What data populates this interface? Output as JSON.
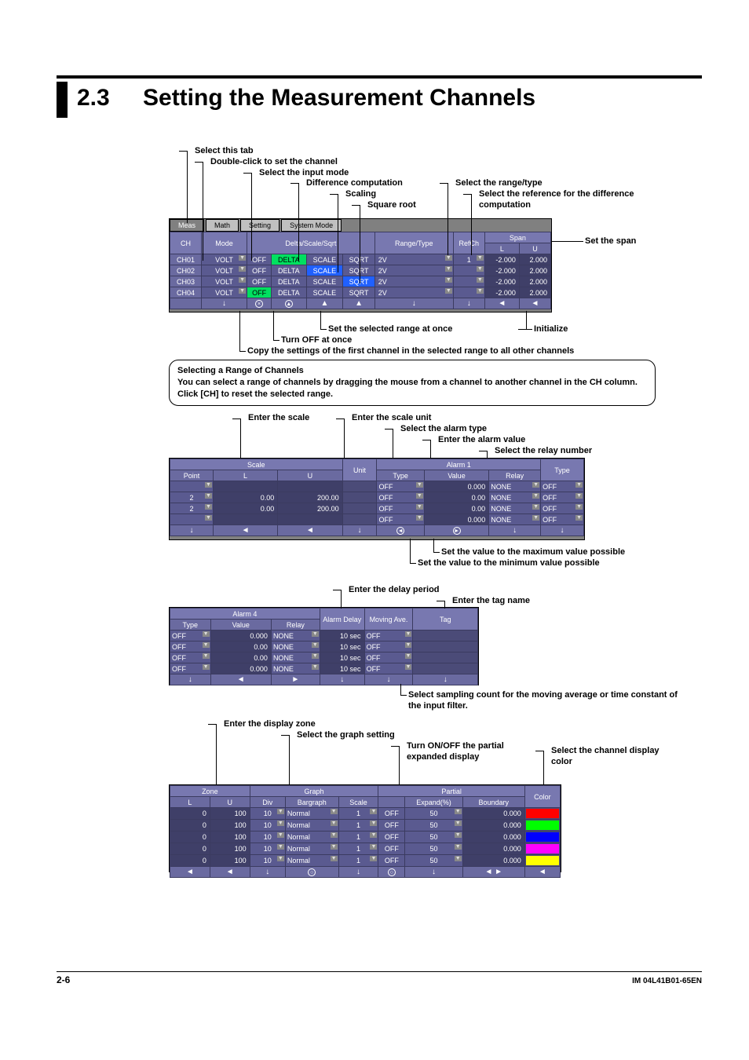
{
  "section_number": "2.3",
  "section_title": "Setting the Measurement Channels",
  "footer_page": "2-6",
  "footer_doc": "IM 04L41B01-65EN",
  "labels": {
    "select_tab": "Select this tab",
    "dbl_click": "Double-click to set the channel",
    "input_mode": "Select the input mode",
    "diff_comp": "Difference computation",
    "scaling": "Scaling",
    "sqrt": "Square root",
    "range_type": "Select the range/type",
    "ref_ch": "Select the reference for the difference computation",
    "set_span": "Set the span",
    "set_range_once": "Set the selected range at once",
    "turn_off_once": "Turn OFF at once",
    "copy_settings": "Copy the settings of the first channel in the selected range to all other channels",
    "initialize": "Initialize",
    "enter_scale": "Enter the scale",
    "enter_scale_unit": "Enter the scale unit",
    "alarm_type": "Select the alarm type",
    "alarm_value": "Enter the alarm value",
    "relay_number": "Select the relay number",
    "max_val": "Set the value to the maximum value possible",
    "min_val": "Set the value to the minimum value possible",
    "delay": "Enter the delay period",
    "tag": "Enter the tag name",
    "sampling": "Select sampling count for the moving average or time constant of the input filter.",
    "disp_zone": "Enter the display zone",
    "graph_setting": "Select the graph setting",
    "partial_toggle": "Turn ON/OFF the partial expanded display",
    "color": "Select the channel display color"
  },
  "notebox": {
    "title": "Selecting a Range of Channels",
    "body": "You can select a range of channels by dragging the mouse from a channel to another channel in the CH column.  Click [CH] to reset the selected range."
  },
  "fig1": {
    "tabs": [
      "Meas",
      "Math",
      "Setting",
      "System Mode"
    ],
    "top_headers_left": [
      "CH",
      "Mode",
      "Delta/Scale/Sqrt",
      "Range/Type",
      "RefCh"
    ],
    "span_group": "Span",
    "span_headers": [
      "L",
      "U"
    ],
    "rows": [
      {
        "ch": "CH01",
        "mode": "VOLT",
        "off": "OFF",
        "d": "DELTA",
        "s": "SCALE",
        "q": "SQRT",
        "rt": "2V",
        "ref": "1",
        "sl": "-2.000",
        "su": "2.000",
        "hi_d": true
      },
      {
        "ch": "CH02",
        "mode": "VOLT",
        "off": "OFF",
        "d": "DELTA",
        "s": "SCALE",
        "q": "SQRT",
        "rt": "2V",
        "ref": "",
        "sl": "-2.000",
        "su": "2.000",
        "hi_s": true
      },
      {
        "ch": "CH03",
        "mode": "VOLT",
        "off": "OFF",
        "d": "DELTA",
        "s": "SCALE",
        "q": "SQRT",
        "rt": "2V",
        "ref": "",
        "sl": "-2.000",
        "su": "2.000",
        "hi_q": true
      },
      {
        "ch": "CH04",
        "mode": "VOLT",
        "off": "OFF",
        "d": "DELTA",
        "s": "SCALE",
        "q": "SQRT",
        "rt": "2V",
        "ref": "",
        "sl": "-2.000",
        "su": "2.000",
        "hi_off": true
      }
    ]
  },
  "fig2": {
    "scale_group": "Scale",
    "scale_headers": [
      "Point",
      "L",
      "U"
    ],
    "unit_header": "Unit",
    "alarm_group": "Alarm 1",
    "alarm_headers": [
      "Type",
      "Value",
      "Relay",
      "Type"
    ],
    "rows": [
      {
        "pt": "",
        "l": "",
        "u": "",
        "unit": "",
        "at": "OFF",
        "av": "0.000",
        "ar": "NONE",
        "a2": "OFF"
      },
      {
        "pt": "2",
        "l": "0.00",
        "u": "200.00",
        "unit": "",
        "at": "OFF",
        "av": "0.00",
        "ar": "NONE",
        "a2": "OFF"
      },
      {
        "pt": "2",
        "l": "0.00",
        "u": "200.00",
        "unit": "",
        "at": "OFF",
        "av": "0.00",
        "ar": "NONE",
        "a2": "OFF"
      },
      {
        "pt": "",
        "l": "",
        "u": "",
        "unit": "",
        "at": "OFF",
        "av": "0.000",
        "ar": "NONE",
        "a2": "OFF"
      }
    ]
  },
  "fig3": {
    "alarm_group": "Alarm 4",
    "alarm_headers": [
      "Type",
      "Value",
      "Relay"
    ],
    "delay_header": "Alarm Delay",
    "mov_header": "Moving Ave.",
    "tag_header": "Tag",
    "rows": [
      {
        "at": "OFF",
        "av": "0.000",
        "ar": "NONE",
        "ad": "10 sec",
        "ma": "OFF",
        "tag": ""
      },
      {
        "at": "OFF",
        "av": "0.00",
        "ar": "NONE",
        "ad": "10 sec",
        "ma": "OFF",
        "tag": ""
      },
      {
        "at": "OFF",
        "av": "0.00",
        "ar": "NONE",
        "ad": "10 sec",
        "ma": "OFF",
        "tag": ""
      },
      {
        "at": "OFF",
        "av": "0.000",
        "ar": "NONE",
        "ad": "10 sec",
        "ma": "OFF",
        "tag": ""
      }
    ]
  },
  "fig4": {
    "zone_group": "Zone",
    "zone_headers": [
      "L",
      "U"
    ],
    "graph_group": "Graph",
    "graph_headers": [
      "Div",
      "Bargraph",
      "Scale"
    ],
    "partial_group": "Partial",
    "partial_headers": [
      "",
      "Expand(%)",
      "Boundary"
    ],
    "color_header": "Color",
    "rows": [
      {
        "zl": "0",
        "zu": "100",
        "div": "10",
        "bar": "Normal",
        "sc": "1",
        "pon": "OFF",
        "pex": "50",
        "pb": "0.000",
        "color": "#ff0000"
      },
      {
        "zl": "0",
        "zu": "100",
        "div": "10",
        "bar": "Normal",
        "sc": "1",
        "pon": "OFF",
        "pex": "50",
        "pb": "0.000",
        "color": "#00ff00"
      },
      {
        "zl": "0",
        "zu": "100",
        "div": "10",
        "bar": "Normal",
        "sc": "1",
        "pon": "OFF",
        "pex": "50",
        "pb": "0.000",
        "color": "#0000ff"
      },
      {
        "zl": "0",
        "zu": "100",
        "div": "10",
        "bar": "Normal",
        "sc": "1",
        "pon": "OFF",
        "pex": "50",
        "pb": "0.000",
        "color": "#ff00ff"
      },
      {
        "zl": "0",
        "zu": "100",
        "div": "10",
        "bar": "Normal",
        "sc": "1",
        "pon": "OFF",
        "pex": "50",
        "pb": "0.000",
        "color": "#ffff00"
      }
    ]
  }
}
